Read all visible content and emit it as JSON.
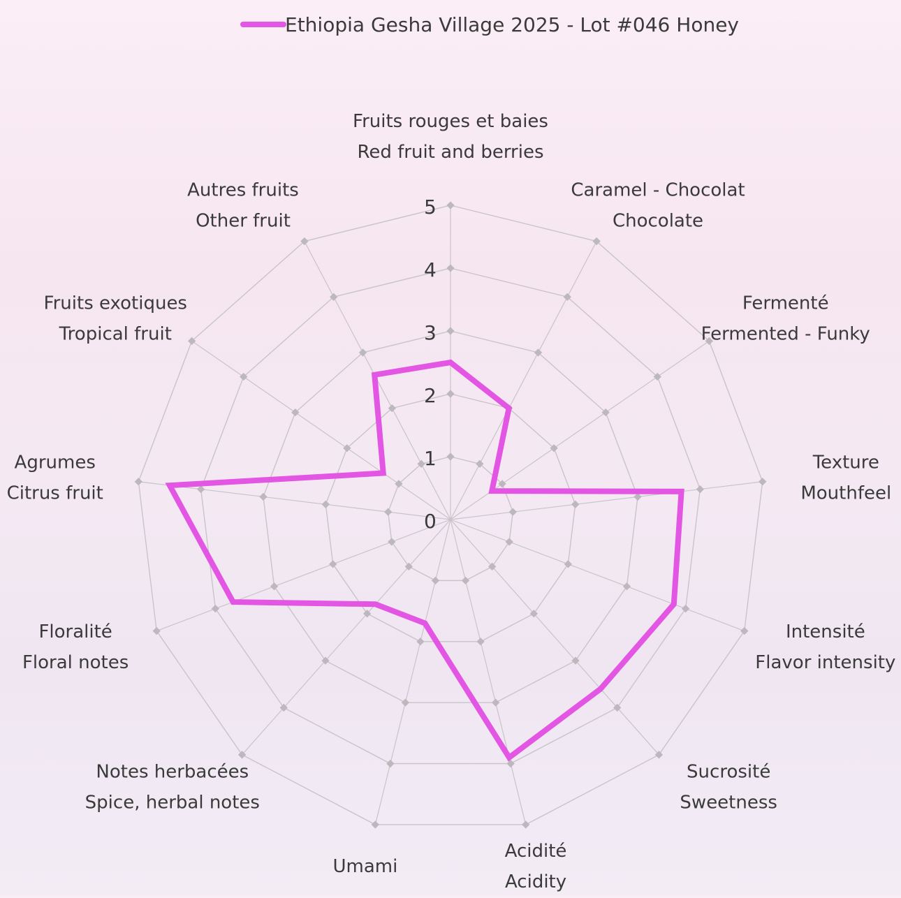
{
  "chart_data": {
    "type": "radar",
    "legend_position": "top",
    "series": [
      {
        "name": "Ethiopia Gesha Village 2025 - Lot #046 Honey",
        "color": "#e355e3",
        "values": [
          2.5,
          2.0,
          0.8,
          3.7,
          3.8,
          3.6,
          3.9,
          1.7,
          1.8,
          3.7,
          4.5,
          1.3,
          2.6
        ]
      }
    ],
    "axes": [
      {
        "line1": "Fruits rouges et baies",
        "line2": "Red fruit and berries"
      },
      {
        "line1": "Caramel - Chocolat",
        "line2": "Chocolate"
      },
      {
        "line1": "Fermenté",
        "line2": "Fermented - Funky"
      },
      {
        "line1": "Texture",
        "line2": "Mouthfeel"
      },
      {
        "line1": "Intensité",
        "line2": "Flavor intensity"
      },
      {
        "line1": "Sucrosité",
        "line2": "Sweetness"
      },
      {
        "line1": "Acidité",
        "line2": "Acidity"
      },
      {
        "line1": "Umami",
        "line2": ""
      },
      {
        "line1": "Notes herbacées",
        "line2": "Spice, herbal notes"
      },
      {
        "line1": "Floralité",
        "line2": "Floral notes"
      },
      {
        "line1": "Agrumes",
        "line2": "Citrus fruit"
      },
      {
        "line1": "Fruits exotiques",
        "line2": "Tropical fruit"
      },
      {
        "line1": "Autres fruits",
        "line2": "Other fruit"
      }
    ],
    "scale": {
      "min": 0,
      "max": 5,
      "ticks": [
        0,
        1,
        2,
        3,
        4,
        5
      ]
    },
    "grid_color": "#c8c4c8"
  }
}
